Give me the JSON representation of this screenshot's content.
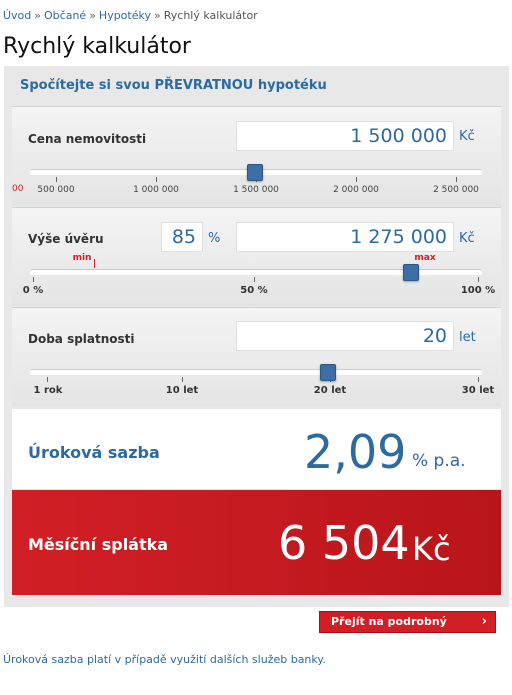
{
  "breadcrumb": {
    "items": [
      "Úvod",
      "Občané",
      "Hypotéky",
      "Rychlý kalkulátor"
    ],
    "sep": "»"
  },
  "page_title": "Rychlý kalkulátor",
  "calculator": {
    "heading": "Spočítejte si svou PŘEVRATNOU hypotéku",
    "property_price": {
      "label": "Cena nemovitosti",
      "value": "1 500 000",
      "unit": "Kč",
      "slider_value": 1500000,
      "ticks": [
        "500 000",
        "1 000 000",
        "1 500 000",
        "2 000 000",
        "2 500 000"
      ],
      "left_partial_label": "00"
    },
    "loan": {
      "label": "Výše úvěru",
      "percent": "85",
      "percent_unit": "%",
      "value": "1 275 000",
      "unit": "Kč",
      "slider_percent": 85,
      "min_label": "min",
      "max_label": "max",
      "ticks": [
        "0 %",
        "50 %",
        "100 %"
      ]
    },
    "term": {
      "label": "Doba splatnosti",
      "value": "20",
      "unit": "let",
      "slider_years": 20,
      "ticks": [
        "1 rok",
        "10 let",
        "20 let",
        "30 let"
      ]
    },
    "rate": {
      "label": "Úroková sazba",
      "value": "2,09",
      "unit": "% p.a."
    },
    "payment": {
      "label": "Měsíční splátka",
      "value": "6 504",
      "unit": "Kč"
    },
    "detail_button": "Přejít na podrobný výpočet",
    "detail_arrow": "›"
  },
  "footnote": "Úroková sazba platí v případě využití dalších služeb banky."
}
